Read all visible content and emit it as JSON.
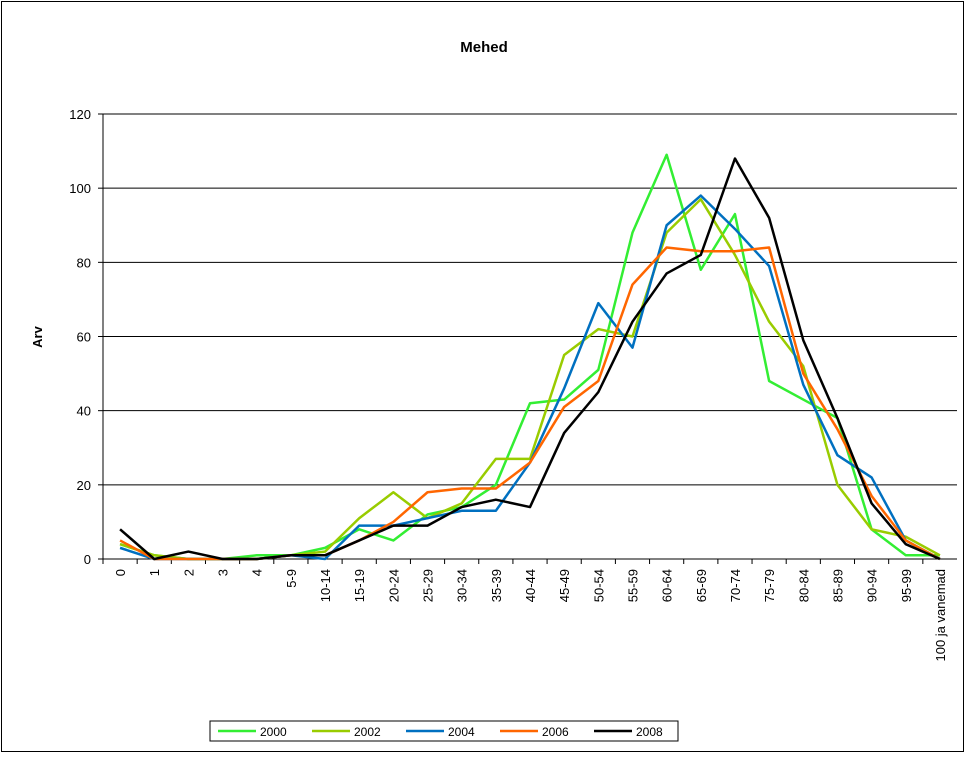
{
  "chart_data": {
    "type": "line",
    "title": "Mehed",
    "y_label": "Arv",
    "categories": [
      "0",
      "1",
      "2",
      "3",
      "4",
      "5-9",
      "10-14",
      "15-19",
      "20-24",
      "25-29",
      "30-34",
      "35-39",
      "40-44",
      "45-49",
      "50-54",
      "55-59",
      "60-64",
      "65-69",
      "70-74",
      "75-79",
      "80-84",
      "85-89",
      "90-94",
      "95-99",
      "100 ja vanemad"
    ],
    "series": [
      {
        "name": "2000",
        "color": "#33ee33",
        "values": [
          4,
          1,
          0,
          0,
          1,
          1,
          3,
          8,
          5,
          12,
          14,
          20,
          42,
          43,
          51,
          88,
          109,
          78,
          93,
          48,
          43,
          38,
          8,
          1,
          1
        ]
      },
      {
        "name": "2002",
        "color": "#99cc00",
        "values": [
          4,
          1,
          0,
          0,
          0,
          1,
          2,
          11,
          18,
          11,
          15,
          27,
          27,
          55,
          62,
          60,
          88,
          97,
          82,
          64,
          52,
          20,
          8,
          6,
          1
        ]
      },
      {
        "name": "2004",
        "color": "#0070c0",
        "values": [
          3,
          0,
          0,
          0,
          0,
          1,
          0,
          9,
          9,
          11,
          13,
          13,
          26,
          46,
          69,
          57,
          90,
          98,
          89,
          79,
          47,
          28,
          22,
          5,
          0
        ]
      },
      {
        "name": "2006",
        "color": "#ff6600",
        "values": [
          5,
          0,
          0,
          0,
          0,
          1,
          1,
          5,
          10,
          18,
          19,
          19,
          26,
          41,
          48,
          74,
          84,
          83,
          83,
          84,
          50,
          35,
          17,
          5,
          0
        ]
      },
      {
        "name": "2008",
        "color": "#000000",
        "values": [
          8,
          0,
          2,
          0,
          0,
          1,
          1,
          5,
          9,
          9,
          14,
          16,
          14,
          34,
          45,
          64,
          77,
          82,
          108,
          92,
          59,
          38,
          15,
          4,
          0
        ]
      }
    ],
    "ylim": [
      0,
      120
    ],
    "yticks": [
      0,
      20,
      40,
      60,
      80,
      100,
      120
    ],
    "grid": true,
    "legend": "bottom"
  }
}
